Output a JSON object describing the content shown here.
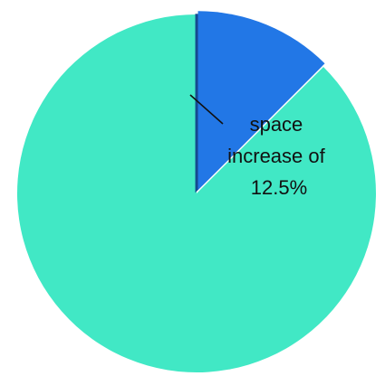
{
  "chart_data": {
    "type": "pie",
    "title": "",
    "slices": [
      {
        "label": "",
        "value": 87.5,
        "color": "#41E8C5"
      },
      {
        "label": "space increase of 12.5%",
        "value": 12.5,
        "color": "#2277E6",
        "exploded": true
      }
    ],
    "start_angle_deg": 0,
    "direction": "counterclockwise",
    "legend": "none",
    "annotation": {
      "lines": [
        "space",
        "increase of",
        "12.5%"
      ],
      "target_slice": 1
    }
  }
}
